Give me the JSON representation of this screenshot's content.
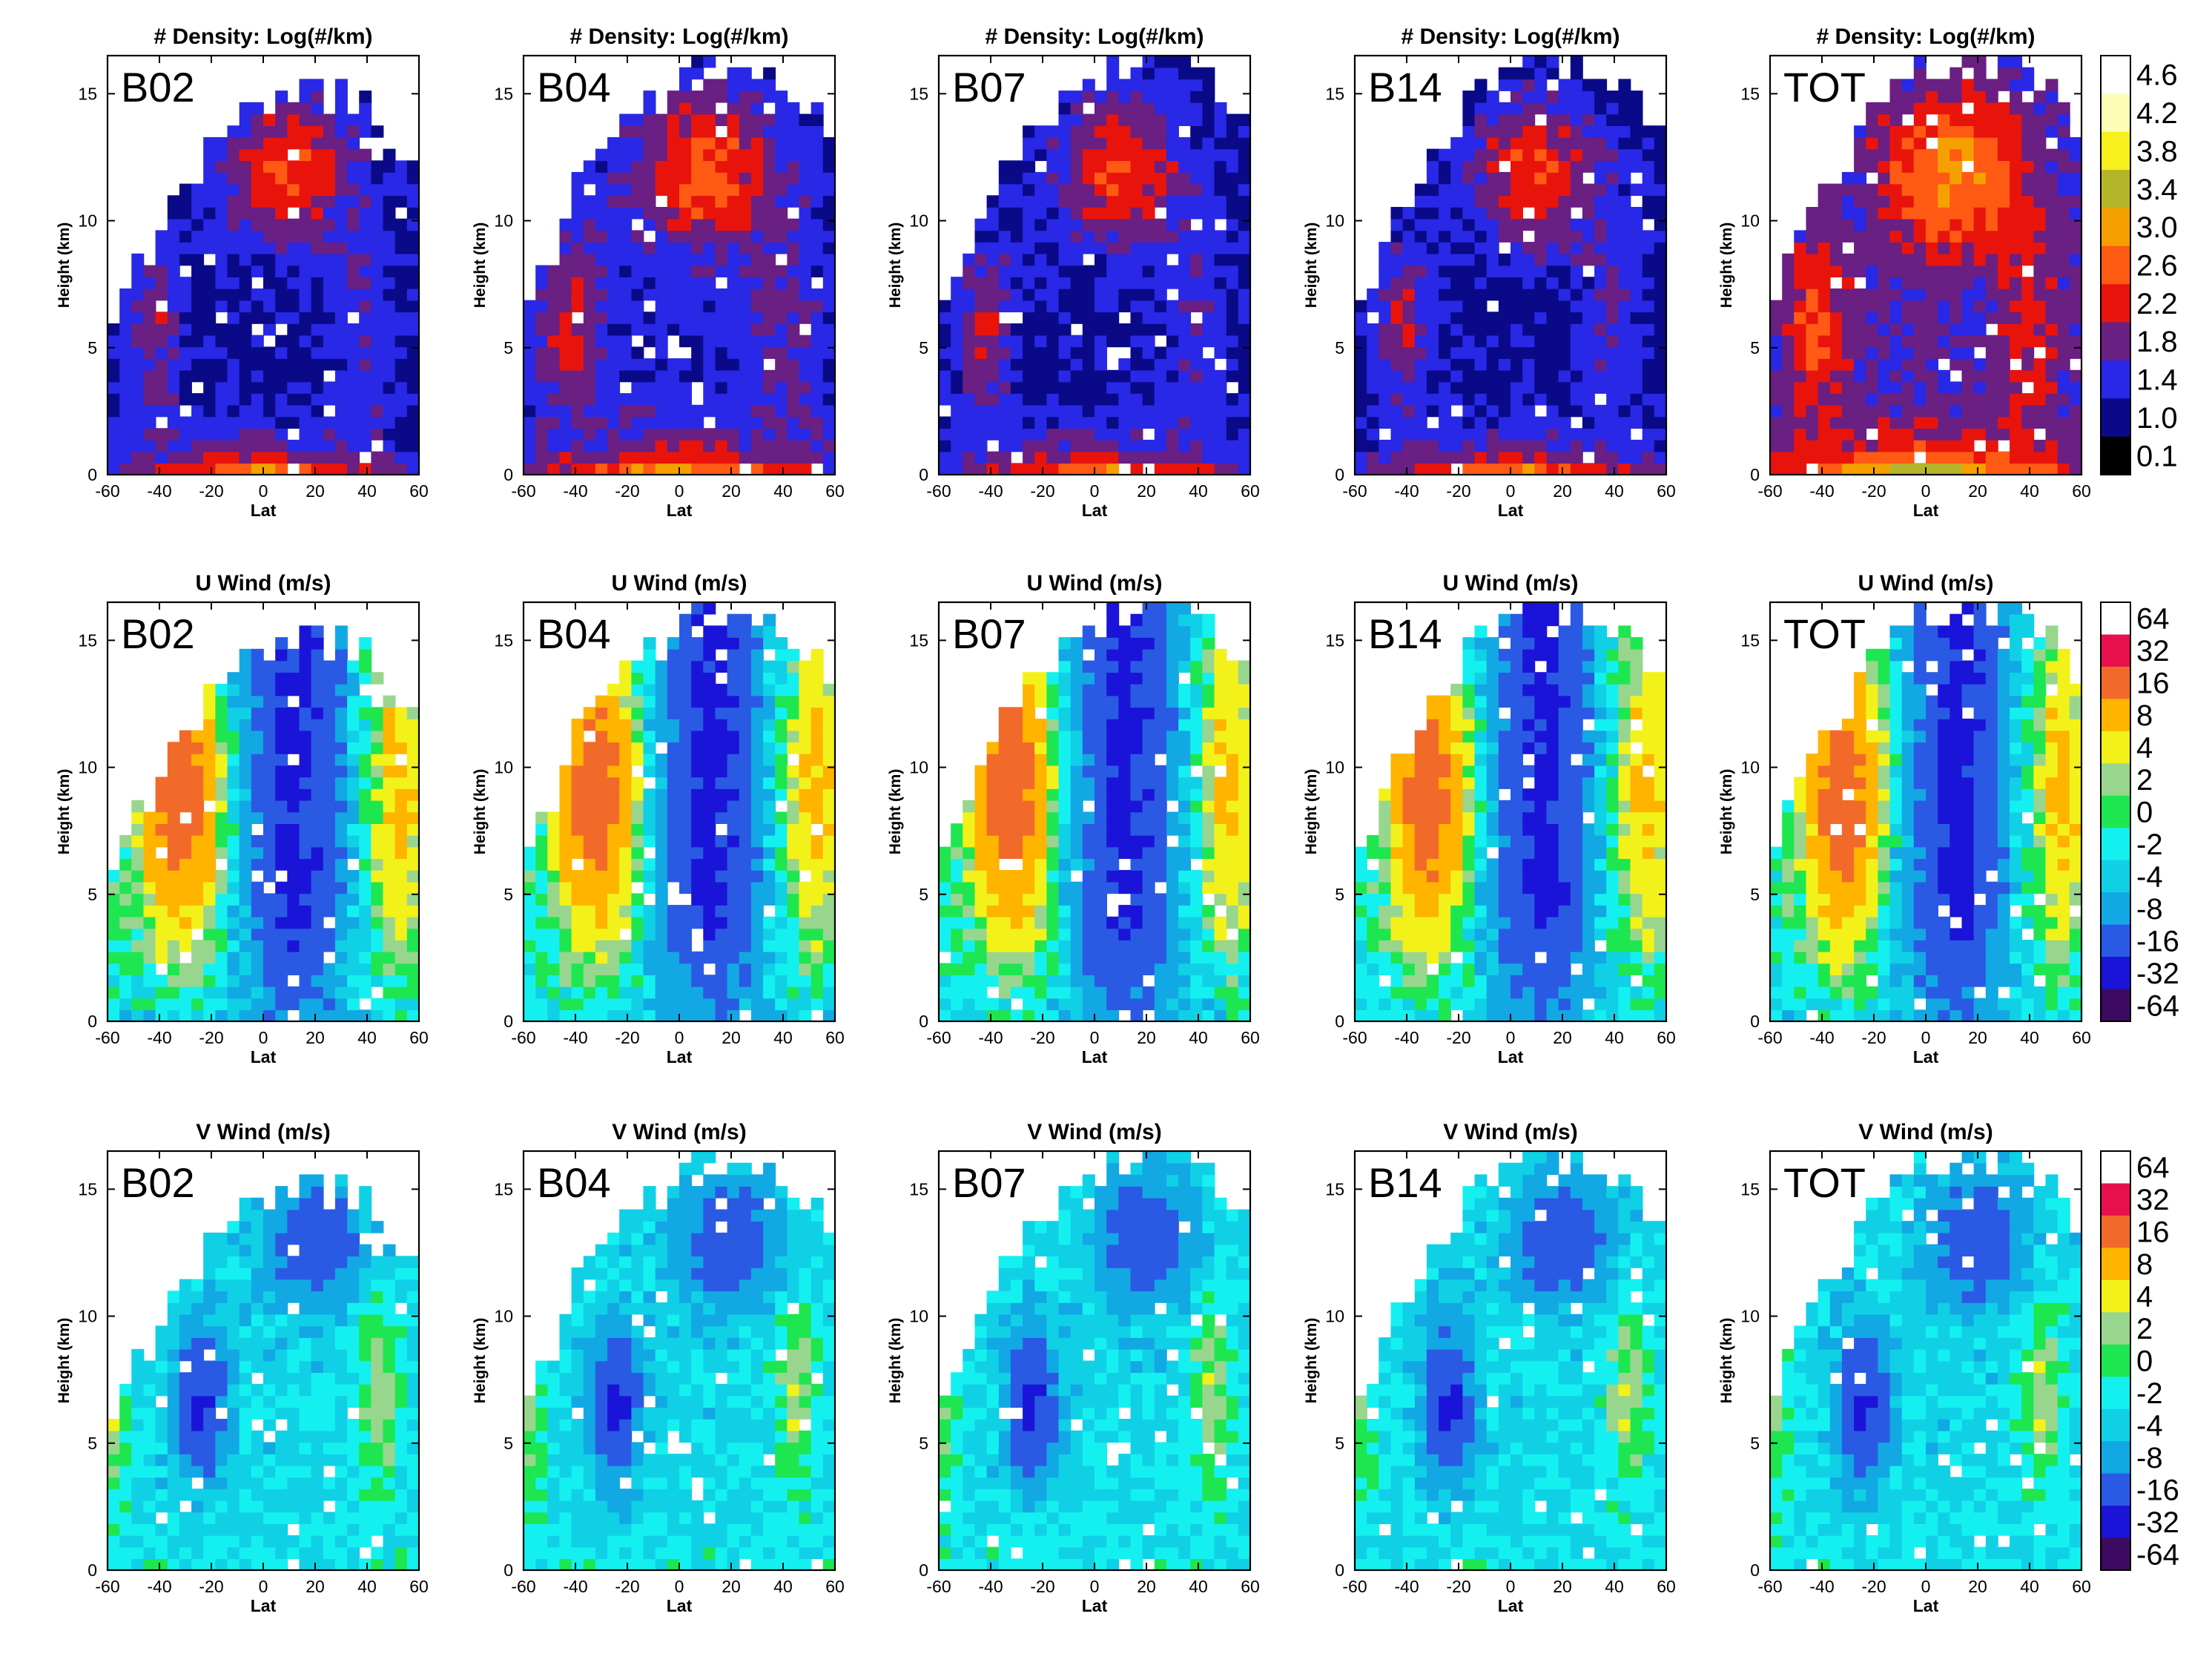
{
  "figure": {
    "panel_labels": [
      "B02",
      "B04",
      "B07",
      "B14",
      "TOT"
    ],
    "rows": [
      {
        "title": "# Density: Log(#/km)",
        "colorbar_ticks": [
          "4.6",
          "4.2",
          "3.8",
          "3.4",
          "3.0",
          "2.6",
          "2.2",
          "1.8",
          "1.4",
          "1.0",
          "0.1"
        ],
        "colorbar_colors": [
          "#ffffff",
          "#fdfdb8",
          "#f7f01c",
          "#b5b52a",
          "#f5a000",
          "#ff5a14",
          "#e8140c",
          "#6a1f82",
          "#2828e6",
          "#0a0a88",
          "#000000"
        ]
      },
      {
        "title": "U Wind (m/s)",
        "colorbar_ticks": [
          "64",
          "32",
          "16",
          "8",
          "4",
          "2",
          "0",
          "-2",
          "-4",
          "-8",
          "-16",
          "-32",
          "-64"
        ],
        "colorbar_colors": [
          "#ffffff",
          "#e8104c",
          "#f26a2a",
          "#ffb400",
          "#f2f21a",
          "#98d68e",
          "#1ee650",
          "#14f0f0",
          "#10d0e6",
          "#12a8e4",
          "#2a5ae4",
          "#1a14d8",
          "#3c0a60"
        ]
      },
      {
        "title": "V Wind (m/s)",
        "colorbar_ticks": [
          "64",
          "32",
          "16",
          "8",
          "4",
          "2",
          "0",
          "-2",
          "-4",
          "-8",
          "-16",
          "-32",
          "-64"
        ],
        "colorbar_colors": [
          "#ffffff",
          "#e8104c",
          "#f26a2a",
          "#ffb400",
          "#f2f21a",
          "#98d68e",
          "#1ee650",
          "#14f0f0",
          "#10d0e6",
          "#12a8e4",
          "#2a5ae4",
          "#1a14d8",
          "#3c0a60"
        ]
      }
    ]
  },
  "chart_data": {
    "type": "heatmap",
    "layout": "3 rows x 5 columns of latitude-height contour panels",
    "xlabel": "Lat",
    "ylabel": "Height (km)",
    "xlim": [
      -60,
      60
    ],
    "ylim": [
      0,
      16.5
    ],
    "x_ticks": [
      "-60",
      "-40",
      "-20",
      "0",
      "20",
      "40",
      "60"
    ],
    "y_ticks": [
      "0",
      "5",
      "10",
      "15"
    ],
    "panels": [
      "B02",
      "B04",
      "B07",
      "B14",
      "TOT"
    ],
    "variables": [
      "# Density: Log(#/km)",
      "U Wind (m/s)",
      "V Wind (m/s)"
    ]
  }
}
